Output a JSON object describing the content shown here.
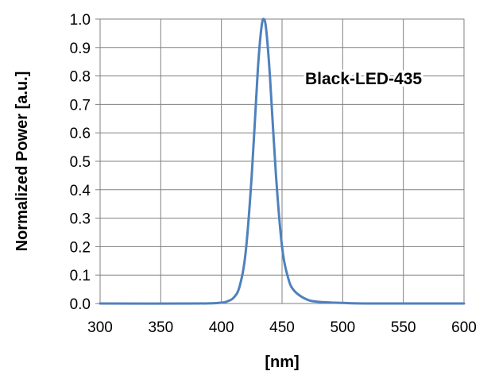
{
  "chart_data": {
    "type": "line",
    "xlabel": "[nm]",
    "ylabel": "Normalized Power [a.u.]",
    "xlim": [
      300,
      600
    ],
    "ylim": [
      0,
      1.0
    ],
    "x_ticks": [
      300,
      350,
      400,
      450,
      500,
      550,
      600
    ],
    "x_tick_labels": [
      "300",
      "350",
      "400",
      "450",
      "500",
      "550",
      "600"
    ],
    "y_ticks": [
      0.0,
      0.1,
      0.2,
      0.3,
      0.4,
      0.5,
      0.6,
      0.7,
      0.8,
      0.9,
      1.0
    ],
    "y_tick_labels": [
      "0.0",
      "0.1",
      "0.2",
      "0.3",
      "0.4",
      "0.5",
      "0.6",
      "0.7",
      "0.8",
      "0.9",
      "1.0"
    ],
    "grid": true,
    "legend": "none",
    "annotation": "Black-LED-435",
    "series": [
      {
        "color": "#4f81bd",
        "x": [
          300,
          380,
          400,
          405,
          410,
          415,
          420,
          425,
          430,
          433,
          435,
          437,
          440,
          445,
          450,
          455,
          460,
          470,
          480,
          500,
          520,
          600
        ],
        "y": [
          0.0,
          0.0,
          0.003,
          0.008,
          0.02,
          0.06,
          0.18,
          0.45,
          0.82,
          0.97,
          1.0,
          0.96,
          0.8,
          0.45,
          0.2,
          0.09,
          0.045,
          0.015,
          0.006,
          0.002,
          0.0,
          0.0
        ]
      }
    ]
  }
}
